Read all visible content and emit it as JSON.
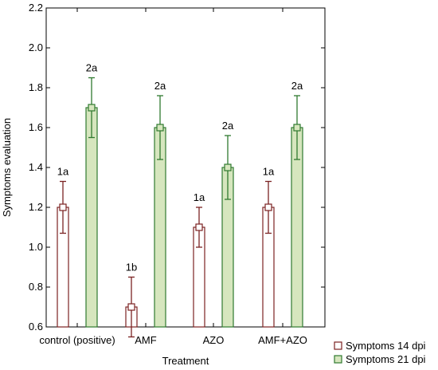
{
  "chart_data": {
    "type": "bar",
    "xlabel": "Treatment",
    "ylabel": "Symptoms evaluation",
    "ylim": [
      0.6,
      2.2
    ],
    "yticks": [
      0.6,
      0.8,
      1.0,
      1.2,
      1.4,
      1.6,
      1.8,
      2.0,
      2.2
    ],
    "ytick_labels": [
      "0.6",
      "0.8",
      "1.0",
      "1.2",
      "1.4",
      "1.6",
      "1.8",
      "2.0",
      "2.2"
    ],
    "grid": false,
    "legend_position": "bottom-right, outside plot",
    "categories": [
      "control (positive)",
      "AMF",
      "AZO",
      "AMF+AZO"
    ],
    "series": [
      {
        "name": "Symptoms 14 dpi",
        "values": [
          1.2,
          0.7,
          1.1,
          1.2
        ],
        "err_low": [
          1.07,
          0.55,
          1.0,
          1.07
        ],
        "err_high": [
          1.33,
          0.85,
          1.2,
          1.33
        ],
        "labels": [
          "1a",
          "1b",
          "1a",
          "1a"
        ],
        "fill": "#ffffff",
        "edge": "#7b2222"
      },
      {
        "name": "Symptoms 21 dpi",
        "values": [
          1.7,
          1.6,
          1.4,
          1.6
        ],
        "err_low": [
          1.55,
          1.44,
          1.24,
          1.44
        ],
        "err_high": [
          1.85,
          1.76,
          1.56,
          1.76
        ],
        "labels": [
          "2a",
          "2a",
          "2a",
          "2a"
        ],
        "fill": "#d6e6be",
        "edge": "#2f7a2f"
      }
    ]
  }
}
